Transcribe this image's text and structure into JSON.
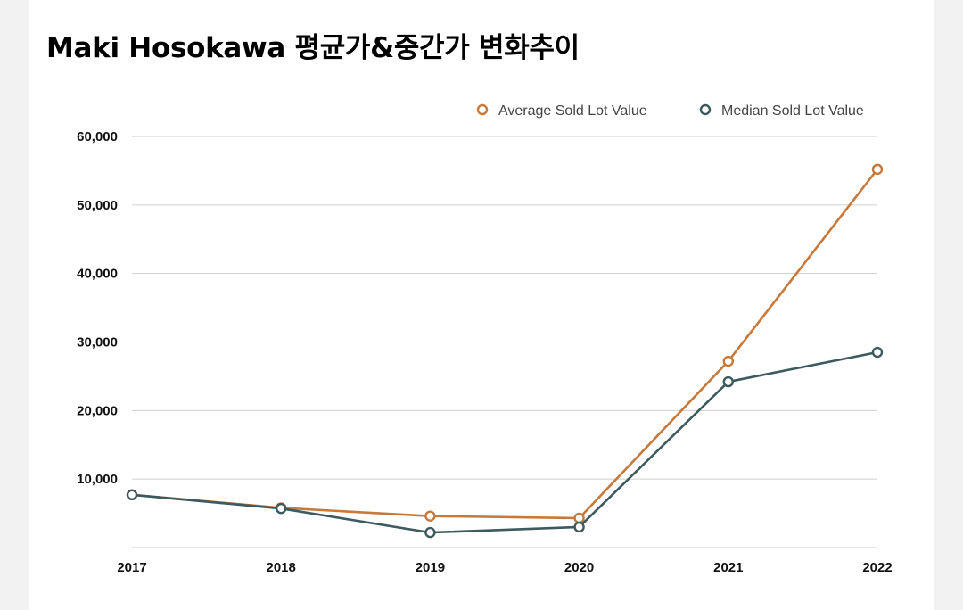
{
  "chart_data": {
    "type": "line",
    "title": "Maki Hosokawa 평균가&중간가 변화추이",
    "categories": [
      "2017",
      "2018",
      "2019",
      "2020",
      "2021",
      "2022"
    ],
    "ylim": [
      0,
      60000
    ],
    "yticks": [
      10000,
      20000,
      30000,
      40000,
      50000,
      60000
    ],
    "ytick_labels": [
      "10,000",
      "20,000",
      "30,000",
      "40,000",
      "50,000",
      "60,000"
    ],
    "grid": true,
    "legend_position": "top-right",
    "series": [
      {
        "name": "Average Sold Lot Value",
        "color": "#c87838",
        "values": [
          7700,
          5800,
          4600,
          4300,
          27200,
          55200
        ]
      },
      {
        "name": "Median Sold Lot Value",
        "color": "#3d5a5e",
        "values": [
          7700,
          5700,
          2200,
          3000,
          24200,
          28500
        ]
      }
    ]
  }
}
